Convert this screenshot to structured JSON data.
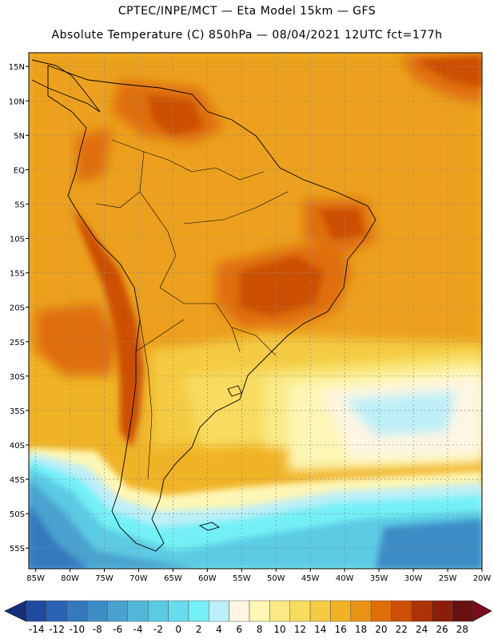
{
  "header": {
    "line1": "CPTEC/INPE/MCT —  Eta Model 15km — GFS",
    "line2": "Absolute Temperature (C) 850hPa — 08/04/2021 12UTC fct=177h"
  },
  "map": {
    "lat_labels": [
      "15N",
      "10N",
      "5N",
      "EQ",
      "5S",
      "10S",
      "15S",
      "20S",
      "25S",
      "30S",
      "35S",
      "40S",
      "45S",
      "50S",
      "55S"
    ],
    "lon_labels": [
      "85W",
      "80W",
      "75W",
      "70W",
      "65W",
      "60W",
      "55W",
      "50W",
      "45W",
      "40W",
      "35W",
      "30W",
      "25W",
      "20W"
    ],
    "lat_range": [
      -58,
      17
    ],
    "lon_range": [
      -86,
      -20
    ]
  },
  "colorbar": {
    "labels": [
      "-14",
      "-12",
      "-10",
      "-8",
      "-6",
      "-4",
      "-2",
      "0",
      "2",
      "4",
      "6",
      "8",
      "10",
      "12",
      "14",
      "16",
      "18",
      "20",
      "22",
      "24",
      "26",
      "28"
    ],
    "colors": [
      "#1f4aa0",
      "#2a63b4",
      "#3478be",
      "#3e8cc6",
      "#4aa2cf",
      "#52b8d9",
      "#5bcbe4",
      "#66dced",
      "#73f0f6",
      "#bdeff8",
      "#fef6e3",
      "#fdf6b4",
      "#fbe985",
      "#f7dc5e",
      "#f4cb42",
      "#f0b326",
      "#e99214",
      "#df6e0a",
      "#cc4f06",
      "#ad3205",
      "#8a1e08",
      "#661010"
    ],
    "under_color": "#152f7a",
    "over_color": "#7a0c1e"
  }
}
